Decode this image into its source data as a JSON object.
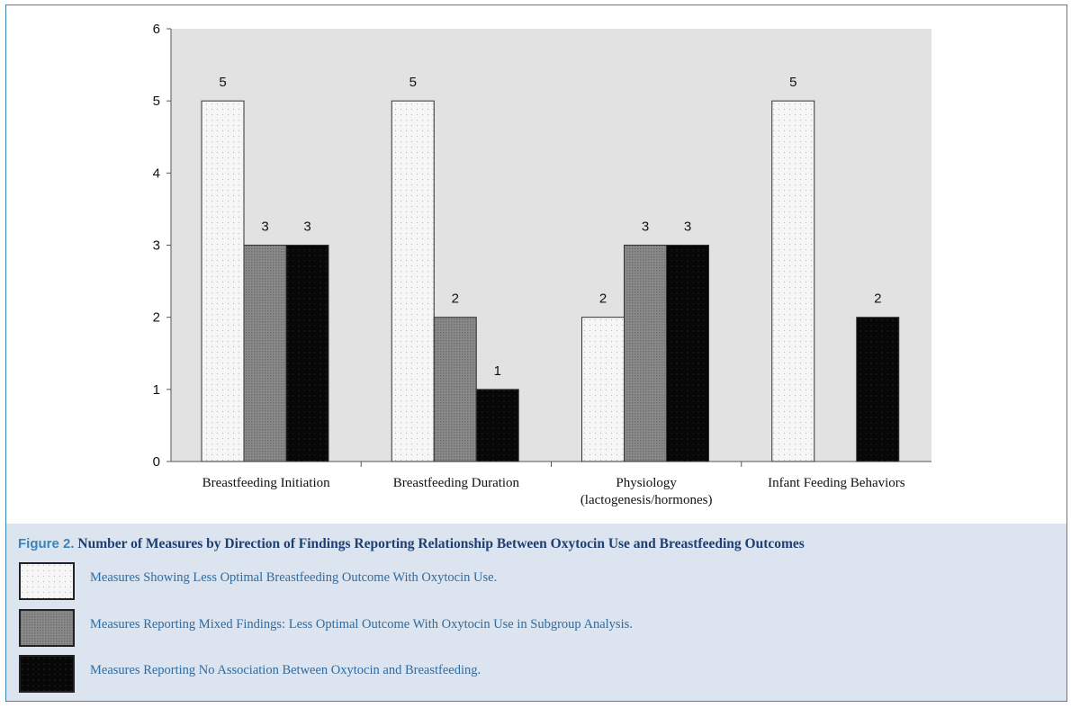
{
  "chart_data": {
    "type": "bar",
    "categories": [
      [
        "Breastfeeding Initiation"
      ],
      [
        "Breastfeeding Duration"
      ],
      [
        "Physiology",
        "(lactogenesis/hormones)"
      ],
      [
        "Infant Feeding Behaviors"
      ]
    ],
    "series": [
      {
        "key": "less_optimal",
        "values": [
          5,
          5,
          2,
          5
        ],
        "color": "#f4f4f4"
      },
      {
        "key": "mixed",
        "values": [
          3,
          2,
          3,
          null
        ],
        "color": "#7c7c7c"
      },
      {
        "key": "no_association",
        "values": [
          3,
          1,
          3,
          2
        ],
        "color": "#0a0a0a"
      }
    ],
    "data_labels": [
      [
        "5",
        "3",
        "3"
      ],
      [
        "5",
        "2",
        "1"
      ],
      [
        "2",
        "3",
        "3"
      ],
      [
        "5",
        null,
        "2"
      ]
    ],
    "ylim": [
      0,
      6
    ],
    "yticks": [
      "0",
      "1",
      "2",
      "3",
      "4",
      "5",
      "6"
    ],
    "grid": false,
    "plot_background": "#e2e2e2"
  },
  "caption": {
    "figure_label": "Figure 2.",
    "title": "Number of Measures by Direction of Findings Reporting Relationship Between Oxytocin Use and Breastfeeding Outcomes"
  },
  "legend": [
    {
      "text": "Measures Showing Less Optimal Breastfeeding Outcome With Oxytocin Use.",
      "color": "#f4f4f4"
    },
    {
      "text": "Measures Reporting Mixed Findings: Less Optimal Outcome With Oxytocin Use in Subgroup Analysis.",
      "color": "#7c7c7c"
    },
    {
      "text": "Measures Reporting No Association Between Oxytocin and Breastfeeding.",
      "color": "#0a0a0a"
    }
  ]
}
